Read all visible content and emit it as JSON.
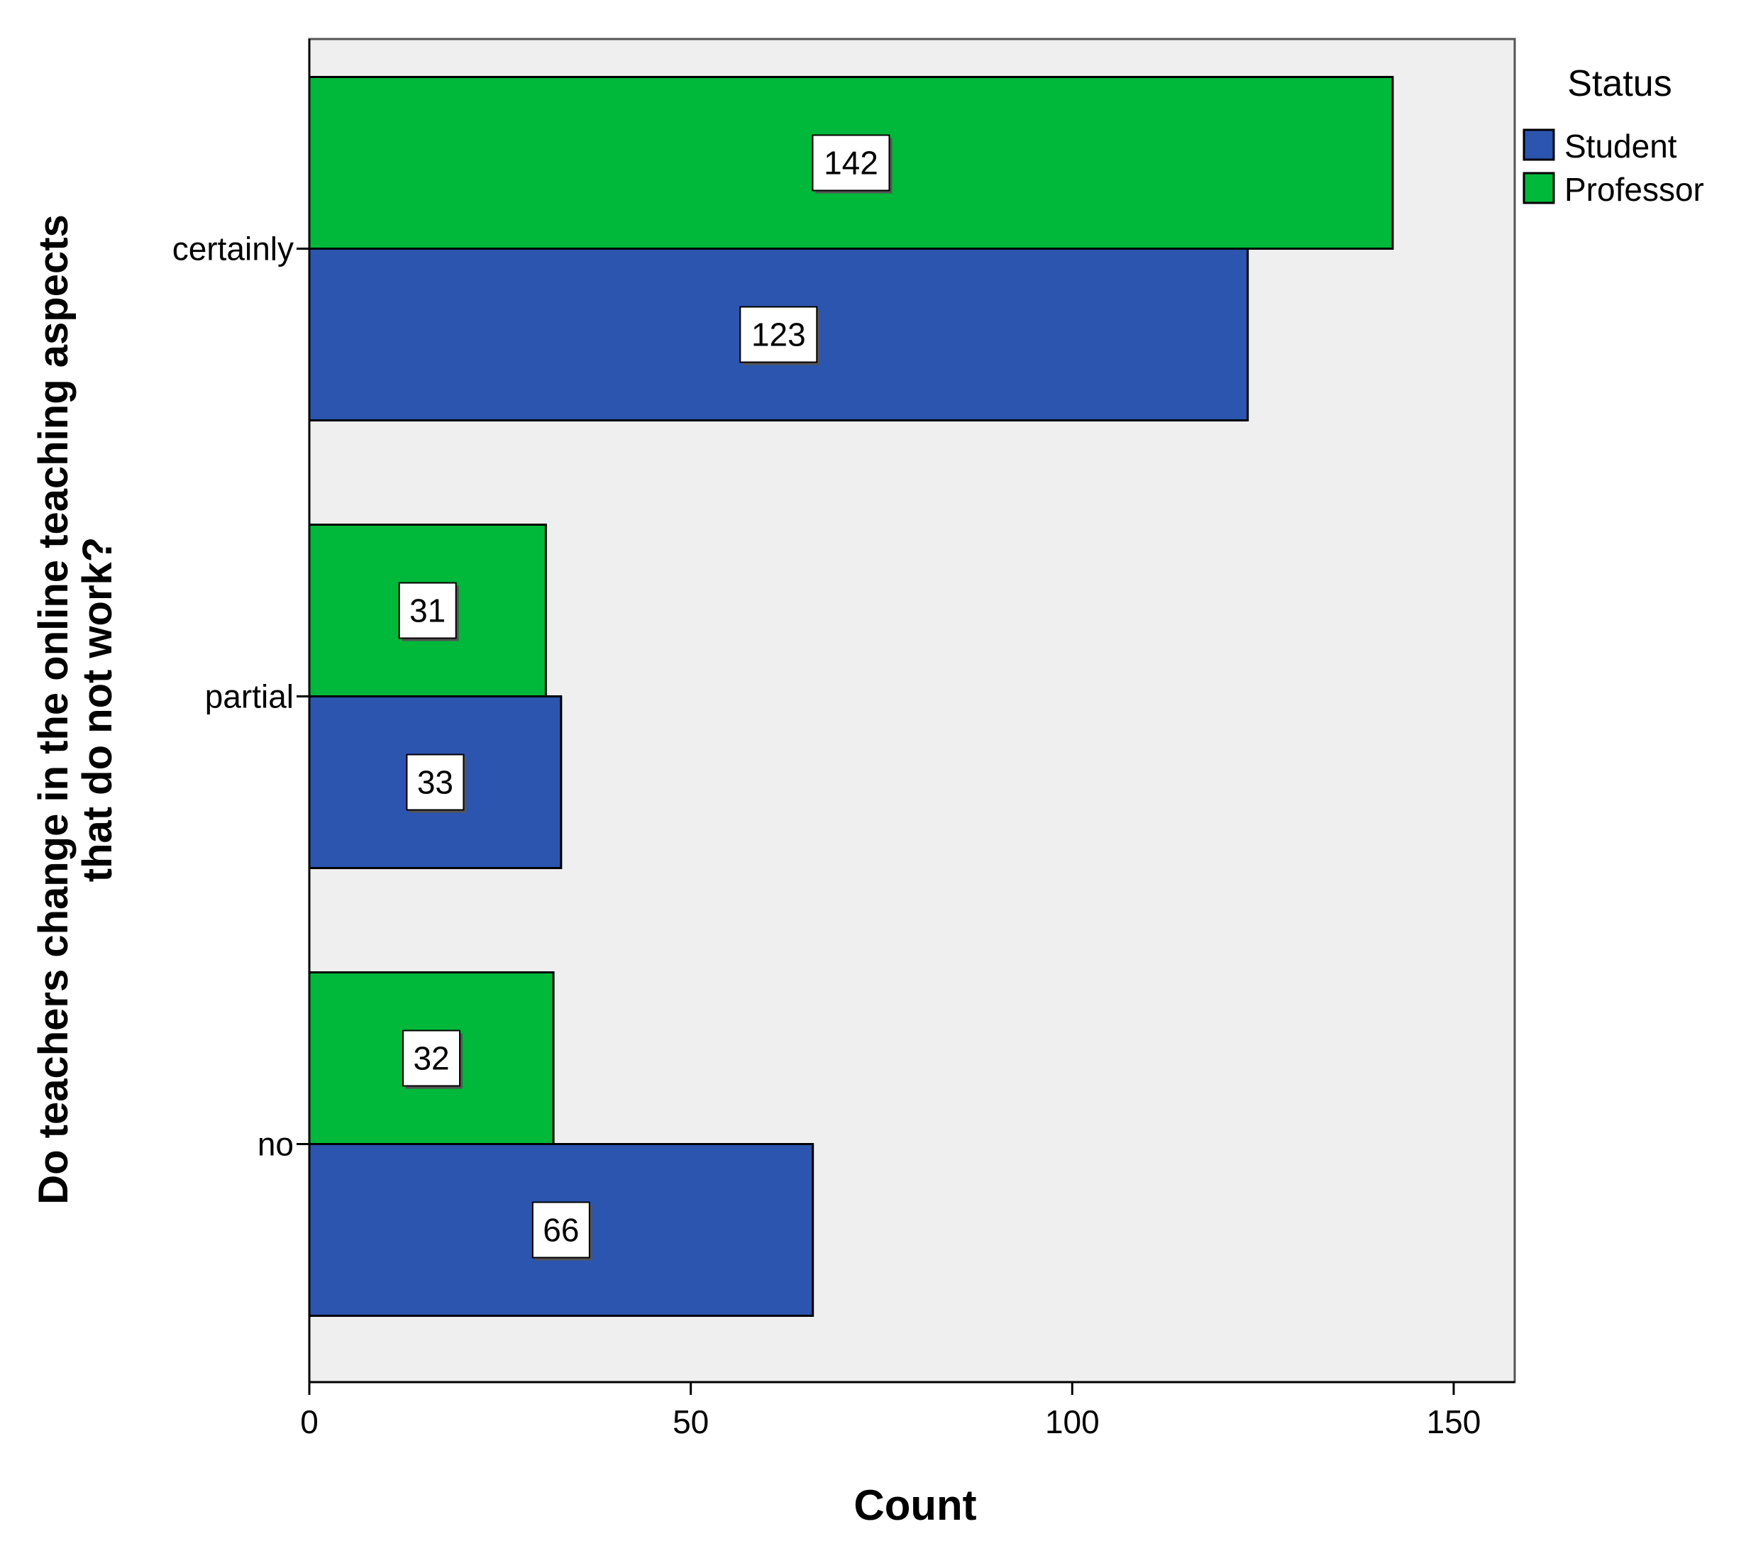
{
  "chart_data": {
    "type": "bar",
    "orientation": "horizontal",
    "categories": [
      "certainly",
      "partial",
      "no"
    ],
    "series": [
      {
        "name": "Student",
        "values": [
          123,
          33,
          66
        ],
        "color": "#2B55AF"
      },
      {
        "name": "Professor",
        "values": [
          142,
          31,
          32
        ],
        "color": "#00B83A"
      }
    ],
    "xlabel": "Count",
    "ylabel_lines": [
      "Do teachers change in the online teaching aspects",
      "that do not work?"
    ],
    "xlim": [
      0,
      158
    ],
    "xticks": [
      0,
      50,
      100,
      150
    ],
    "legend": {
      "title": "Status",
      "position": "right"
    },
    "plot_background": "#EFEFEF",
    "grid": false,
    "data_labels": true
  }
}
